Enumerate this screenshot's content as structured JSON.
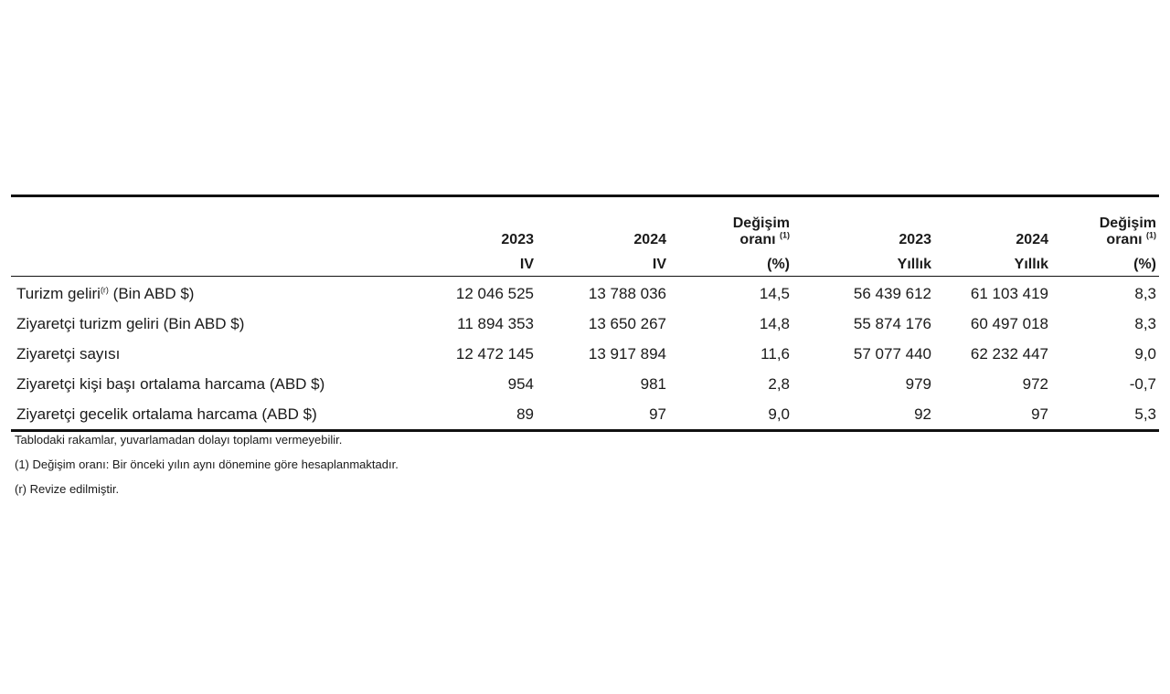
{
  "table": {
    "headers": {
      "col1": {
        "year": "2023",
        "period": "IV"
      },
      "col2": {
        "year": "2024",
        "period": "IV"
      },
      "col3": {
        "line1": "Değişim",
        "line2": "oranı",
        "sup": "(1)",
        "unit": "(%)"
      },
      "col4": {
        "year": "2023",
        "period": "Yıllık"
      },
      "col5": {
        "year": "2024",
        "period": "Yıllık"
      },
      "col6": {
        "line1": "Değişim",
        "line2": "oranı",
        "sup": "(1)",
        "unit": "(%)"
      }
    },
    "rows": [
      {
        "label": "Turizm geliri",
        "label_sup": "(r)",
        "label_suffix": " (Bin ABD $)",
        "values": [
          "12 046 525",
          "13 788 036",
          "14,5",
          "56 439 612",
          "61 103 419",
          "8,3"
        ]
      },
      {
        "label": "Ziyaretçi turizm geliri (Bin ABD $)",
        "values": [
          "11 894 353",
          "13 650 267",
          "14,8",
          "55 874 176",
          "60 497 018",
          "8,3"
        ]
      },
      {
        "label": "Ziyaretçi sayısı",
        "values": [
          "12 472 145",
          "13 917 894",
          "11,6",
          "57 077 440",
          "62 232 447",
          "9,0"
        ]
      },
      {
        "label": "Ziyaretçi kişi başı ortalama harcama (ABD $)",
        "values": [
          "954",
          "981",
          "2,8",
          "979",
          "972",
          "-0,7"
        ]
      },
      {
        "label": "Ziyaretçi gecelik ortalama harcama (ABD $)",
        "values": [
          "89",
          "97",
          "9,0",
          "92",
          "97",
          "5,3"
        ]
      }
    ]
  },
  "notes": [
    "Tablodaki rakamlar, yuvarlamadan dolayı toplamı vermeyebilir.",
    "(1) Değişim oranı: Bir önceki yılın aynı dönemine göre hesaplanmaktadır.",
    "(r) Revize edilmiştir."
  ]
}
